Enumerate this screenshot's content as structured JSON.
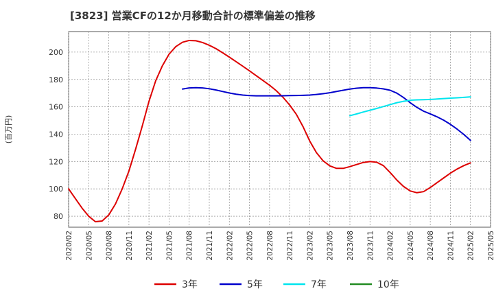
{
  "chart_data": {
    "type": "line",
    "title": "[3823]  営業CFの12か月移動合計の標準偏差の推移",
    "ylabel": "(百万円)",
    "xlabel": "",
    "ylim": [
      72,
      215
    ],
    "yticks": [
      80,
      100,
      120,
      140,
      160,
      180,
      200
    ],
    "x_ticks": [
      "2020/02",
      "2020/05",
      "2020/08",
      "2020/11",
      "2021/02",
      "2021/05",
      "2021/08",
      "2021/11",
      "2022/02",
      "2022/05",
      "2022/08",
      "2022/11",
      "2023/02",
      "2023/05",
      "2023/08",
      "2023/11",
      "2024/02",
      "2024/05",
      "2024/08",
      "2024/11",
      "2025/02",
      "2025/05"
    ],
    "grid": true,
    "legend_position": "bottom",
    "series": [
      {
        "name": "3年",
        "color": "#dd0000",
        "points": [
          [
            "2020/02",
            100
          ],
          [
            "2020/03",
            93
          ],
          [
            "2020/04",
            86
          ],
          [
            "2020/05",
            80
          ],
          [
            "2020/06",
            76
          ],
          [
            "2020/07",
            76.5
          ],
          [
            "2020/08",
            81
          ],
          [
            "2020/09",
            89
          ],
          [
            "2020/10",
            100
          ],
          [
            "2020/11",
            113
          ],
          [
            "2020/12",
            129
          ],
          [
            "2021/01",
            146
          ],
          [
            "2021/02",
            164
          ],
          [
            "2021/03",
            179
          ],
          [
            "2021/04",
            190
          ],
          [
            "2021/05",
            198.5
          ],
          [
            "2021/06",
            204
          ],
          [
            "2021/07",
            207.2
          ],
          [
            "2021/08",
            208.5
          ],
          [
            "2021/09",
            208.3
          ],
          [
            "2021/10",
            207
          ],
          [
            "2021/11",
            205
          ],
          [
            "2021/12",
            202.5
          ],
          [
            "2022/01",
            199.5
          ],
          [
            "2022/02",
            196.3
          ],
          [
            "2022/03",
            193
          ],
          [
            "2022/04",
            189.7
          ],
          [
            "2022/05",
            186.3
          ],
          [
            "2022/06",
            182.8
          ],
          [
            "2022/07",
            179.3
          ],
          [
            "2022/08",
            175.8
          ],
          [
            "2022/09",
            171.8
          ],
          [
            "2022/10",
            167
          ],
          [
            "2022/11",
            161.3
          ],
          [
            "2022/12",
            154.5
          ],
          [
            "2023/01",
            145.5
          ],
          [
            "2023/02",
            135
          ],
          [
            "2023/03",
            126.5
          ],
          [
            "2023/04",
            120.5
          ],
          [
            "2023/05",
            116.8
          ],
          [
            "2023/06",
            115
          ],
          [
            "2023/07",
            115
          ],
          [
            "2023/08",
            116.3
          ],
          [
            "2023/09",
            117.8
          ],
          [
            "2023/10",
            119.3
          ],
          [
            "2023/11",
            120
          ],
          [
            "2023/12",
            119.5
          ],
          [
            "2024/01",
            117
          ],
          [
            "2024/02",
            112
          ],
          [
            "2024/03",
            106.5
          ],
          [
            "2024/04",
            101.8
          ],
          [
            "2024/05",
            98.5
          ],
          [
            "2024/06",
            97.2
          ],
          [
            "2024/07",
            98
          ],
          [
            "2024/08",
            101
          ],
          [
            "2024/09",
            104.5
          ],
          [
            "2024/10",
            108
          ],
          [
            "2024/11",
            111.5
          ],
          [
            "2024/12",
            114.5
          ],
          [
            "2025/01",
            117
          ],
          [
            "2025/02",
            119
          ]
        ]
      },
      {
        "name": "5年",
        "color": "#0000cc",
        "points": [
          [
            "2021/07",
            173
          ],
          [
            "2021/08",
            173.8
          ],
          [
            "2021/09",
            174
          ],
          [
            "2021/10",
            173.8
          ],
          [
            "2021/11",
            173.2
          ],
          [
            "2021/12",
            172.3
          ],
          [
            "2022/01",
            171.2
          ],
          [
            "2022/02",
            170.1
          ],
          [
            "2022/03",
            169.2
          ],
          [
            "2022/04",
            168.6
          ],
          [
            "2022/05",
            168.2
          ],
          [
            "2022/06",
            168
          ],
          [
            "2022/07",
            168
          ],
          [
            "2022/08",
            168
          ],
          [
            "2022/09",
            168
          ],
          [
            "2022/10",
            168.1
          ],
          [
            "2022/11",
            168.2
          ],
          [
            "2022/12",
            168.3
          ],
          [
            "2023/01",
            168.4
          ],
          [
            "2023/02",
            168.6
          ],
          [
            "2023/03",
            169
          ],
          [
            "2023/04",
            169.6
          ],
          [
            "2023/05",
            170.3
          ],
          [
            "2023/06",
            171.2
          ],
          [
            "2023/07",
            172.1
          ],
          [
            "2023/08",
            173
          ],
          [
            "2023/09",
            173.6
          ],
          [
            "2023/10",
            174
          ],
          [
            "2023/11",
            174
          ],
          [
            "2023/12",
            173.7
          ],
          [
            "2024/01",
            173.1
          ],
          [
            "2024/02",
            172.1
          ],
          [
            "2024/03",
            170
          ],
          [
            "2024/04",
            166.8
          ],
          [
            "2024/05",
            163
          ],
          [
            "2024/06",
            159.6
          ],
          [
            "2024/07",
            156.8
          ],
          [
            "2024/08",
            154.8
          ],
          [
            "2024/09",
            152.7
          ],
          [
            "2024/10",
            150.2
          ],
          [
            "2024/11",
            147.2
          ],
          [
            "2024/12",
            143.7
          ],
          [
            "2025/01",
            139.8
          ],
          [
            "2025/02",
            135.5
          ]
        ]
      },
      {
        "name": "7年",
        "color": "#00e5ee",
        "points": [
          [
            "2023/08",
            153.5
          ],
          [
            "2023/09",
            154.8
          ],
          [
            "2023/10",
            156.2
          ],
          [
            "2023/11",
            157.5
          ],
          [
            "2023/12",
            158.8
          ],
          [
            "2024/01",
            160.2
          ],
          [
            "2024/02",
            161.6
          ],
          [
            "2024/03",
            163
          ],
          [
            "2024/04",
            164
          ],
          [
            "2024/05",
            164.8
          ],
          [
            "2024/06",
            165.1
          ],
          [
            "2024/07",
            165.2
          ],
          [
            "2024/08",
            165.4
          ],
          [
            "2024/09",
            165.7
          ],
          [
            "2024/10",
            166
          ],
          [
            "2024/11",
            166.3
          ],
          [
            "2024/12",
            166.6
          ],
          [
            "2025/01",
            166.9
          ],
          [
            "2025/02",
            167.3
          ]
        ]
      },
      {
        "name": "10年",
        "color": "#228b22",
        "points": []
      }
    ]
  }
}
